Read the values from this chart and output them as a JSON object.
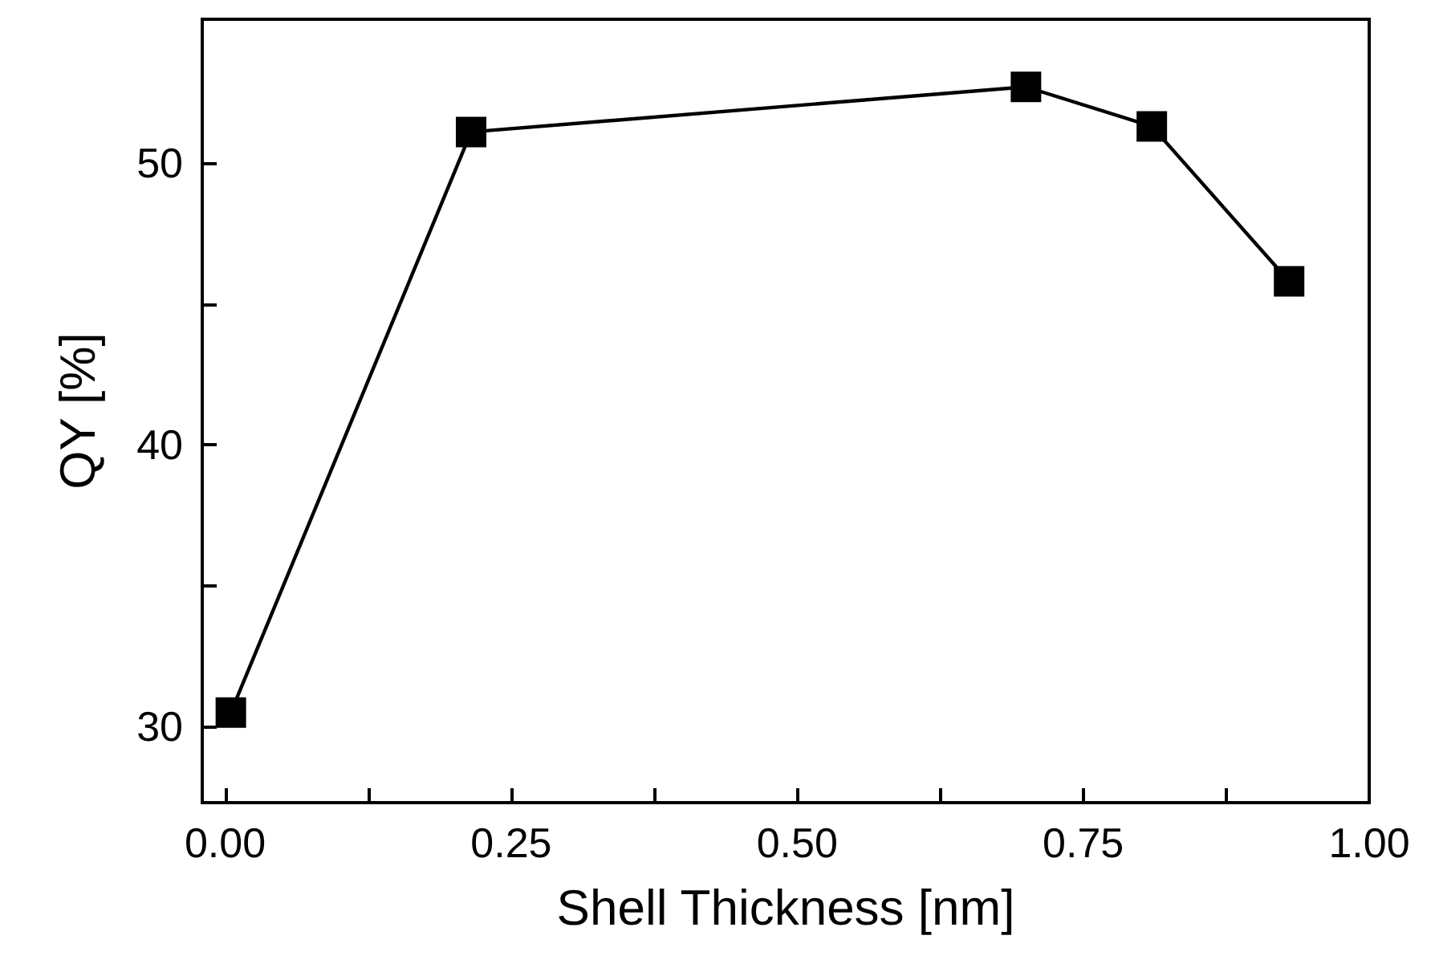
{
  "chart_data": {
    "type": "line",
    "xlabel": "Shell Thickness [nm]",
    "ylabel": "QY [%]",
    "x": [
      0.005,
      0.215,
      0.7,
      0.81,
      0.93
    ],
    "series": [
      {
        "color": "#000000",
        "values": [
          30.5,
          51.1,
          52.7,
          51.3,
          45.8
        ]
      }
    ],
    "xlim": [
      -0.02,
      1.0
    ],
    "xticks": [
      {
        "value": 0,
        "label": "0.00"
      },
      {
        "value": 0.125,
        "label": null
      },
      {
        "value": 0.25,
        "label": "0.25"
      },
      {
        "value": 0.375,
        "label": null
      },
      {
        "value": 0.5,
        "label": "0.50"
      },
      {
        "value": 0.625,
        "label": null
      },
      {
        "value": 0.75,
        "label": "0.75"
      },
      {
        "value": 0.875,
        "label": null
      },
      {
        "value": 1,
        "label": "1.00"
      }
    ],
    "ylim": [
      27.3,
      55.1
    ],
    "yticks": [
      30,
      {
        "value": 35,
        "label": null
      },
      40,
      {
        "value": 45,
        "label": null
      },
      50
    ],
    "marker": "square",
    "line_style": "solid"
  }
}
